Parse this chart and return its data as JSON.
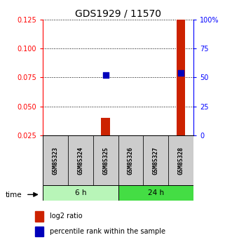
{
  "title": "GDS1929 / 11570",
  "samples": [
    "GSM85323",
    "GSM85324",
    "GSM85325",
    "GSM85326",
    "GSM85327",
    "GSM85328"
  ],
  "log2_ratio": [
    null,
    null,
    0.04,
    null,
    null,
    0.125
  ],
  "percentile_rank": [
    null,
    null,
    52.0,
    null,
    null,
    54.0
  ],
  "left_ylim": [
    0.025,
    0.125
  ],
  "left_yticks": [
    0.025,
    0.05,
    0.075,
    0.1,
    0.125
  ],
  "right_ylim": [
    0,
    100
  ],
  "right_yticks": [
    0,
    25,
    50,
    75,
    100
  ],
  "groups": [
    {
      "label": "6 h",
      "samples": [
        0,
        1,
        2
      ],
      "color": "#b8f5b8"
    },
    {
      "label": "24 h",
      "samples": [
        3,
        4,
        5
      ],
      "color": "#44dd44"
    }
  ],
  "bar_color": "#cc2200",
  "dot_color": "#0000bb",
  "bar_width": 0.35,
  "dot_size": 30,
  "sample_box_color": "#cccccc",
  "title_fontsize": 10,
  "tick_fontsize": 7,
  "label_fontsize": 7.5,
  "legend_fontsize": 7,
  "sample_fontsize": 6
}
